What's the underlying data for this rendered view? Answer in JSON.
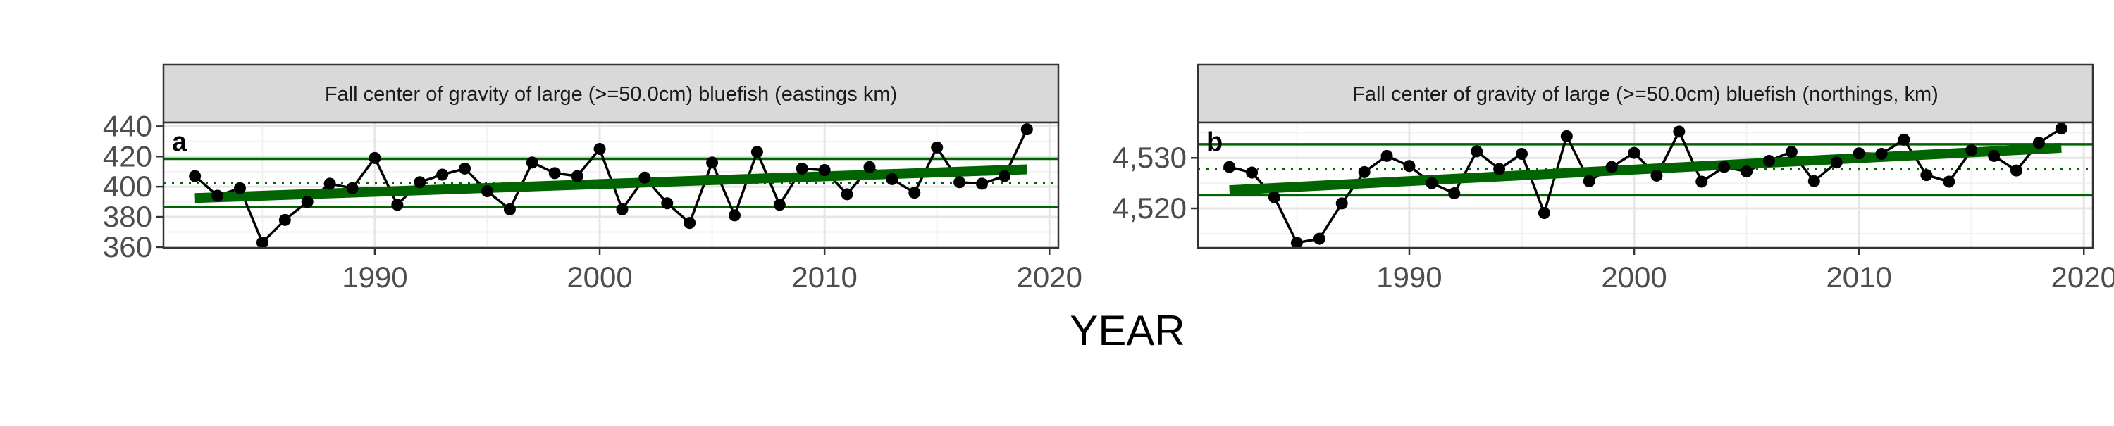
{
  "x_axis_label": "YEAR",
  "chart_data": [
    {
      "type": "line",
      "panel_letter": "a",
      "title": "Fall center of gravity of large (>=50.0cm) bluefish (eastings km)",
      "xlabel": "YEAR",
      "ylabel": "",
      "xlim": [
        1980.6,
        2020.4
      ],
      "ylim": [
        359.5,
        442.5
      ],
      "x_ticks": [
        1990,
        2000,
        2010,
        2020
      ],
      "y_ticks": [
        360,
        380,
        400,
        420,
        440
      ],
      "y_tick_labels": [
        "360",
        "380",
        "400",
        "420",
        "440"
      ],
      "grid": true,
      "series": [
        {
          "x": [
            1982,
            1983,
            1984,
            1985,
            1986,
            1987,
            1988,
            1989,
            1990,
            1991,
            1992,
            1993,
            1994,
            1995,
            1996,
            1997,
            1998,
            1999,
            2000,
            2001,
            2002,
            2003,
            2004,
            2005,
            2006,
            2007,
            2008,
            2009,
            2010,
            2011,
            2012,
            2013,
            2014,
            2015,
            2016,
            2017,
            2018,
            2019
          ],
          "values": [
            407,
            394,
            399,
            363,
            378,
            390,
            402,
            399,
            419,
            388,
            403,
            408,
            412,
            397,
            385,
            416,
            409,
            407,
            425,
            385,
            406,
            389,
            376,
            416,
            381,
            423,
            388,
            412,
            411,
            395,
            413,
            405,
            396,
            426,
            403,
            402,
            407,
            438
          ]
        }
      ],
      "trend_line": {
        "x": [
          1982,
          2019
        ],
        "y": [
          392.5,
          411.5
        ]
      },
      "reference_lines": {
        "mean": 402.5,
        "upper": 418.5,
        "lower": 386.5
      },
      "colors": {
        "points": "#000000",
        "trend": "#006400",
        "reference": "#006400"
      }
    },
    {
      "type": "line",
      "panel_letter": "b",
      "title": "Fall center of gravity of large (>=50.0cm) bluefish (northings, km)",
      "xlabel": "YEAR",
      "ylabel": "",
      "xlim": [
        1980.6,
        2020.4
      ],
      "ylim": [
        4512.2,
        4537.0
      ],
      "x_ticks": [
        1990,
        2000,
        2010,
        2020
      ],
      "y_ticks": [
        4520,
        4530
      ],
      "y_tick_labels": [
        "4,520",
        "4,530"
      ],
      "grid": true,
      "series": [
        {
          "x": [
            1982,
            1983,
            1984,
            1985,
            1986,
            1987,
            1988,
            1989,
            1990,
            1991,
            1992,
            1993,
            1994,
            1995,
            1996,
            1997,
            1998,
            1999,
            2000,
            2001,
            2002,
            2003,
            2004,
            2005,
            2006,
            2007,
            2008,
            2009,
            2010,
            2011,
            2012,
            2013,
            2014,
            2015,
            2016,
            2017,
            2018,
            2019
          ],
          "values": [
            4528.2,
            4527.1,
            4522.2,
            4513.2,
            4514.0,
            4521.0,
            4527.2,
            4530.4,
            4528.4,
            4525.0,
            4523.0,
            4531.3,
            4527.8,
            4530.8,
            4519.1,
            4534.3,
            4525.4,
            4528.2,
            4531.0,
            4526.5,
            4535.2,
            4525.3,
            4528.2,
            4527.3,
            4529.4,
            4531.2,
            4525.4,
            4529.1,
            4530.9,
            4530.8,
            4533.6,
            4526.6,
            4525.3,
            4531.5,
            4530.4,
            4527.5,
            4533.0,
            4535.8
          ]
        }
      ],
      "trend_line": {
        "x": [
          1982,
          2019
        ],
        "y": [
          4523.6,
          4532.0
        ]
      },
      "reference_lines": {
        "mean": 4527.8,
        "upper": 4532.7,
        "lower": 4522.6
      },
      "colors": {
        "points": "#000000",
        "trend": "#006400",
        "reference": "#006400"
      }
    }
  ]
}
